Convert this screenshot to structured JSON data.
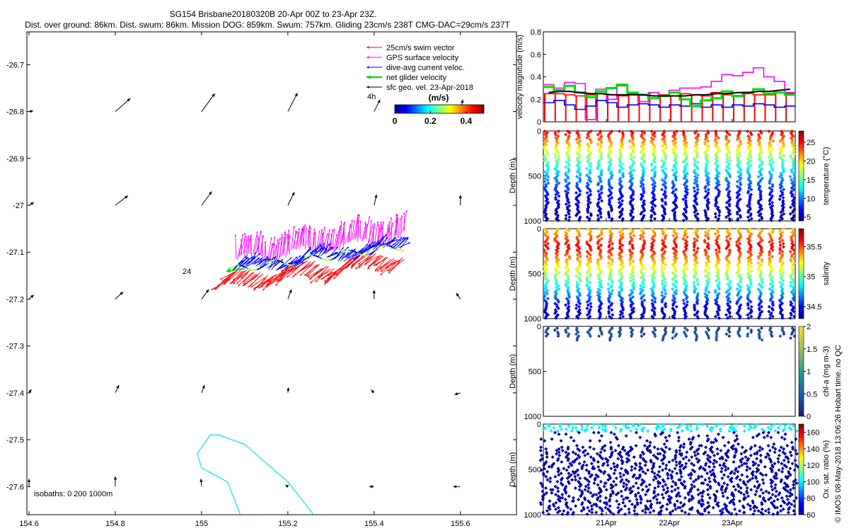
{
  "header": {
    "line1": "SG154 Brisbane20180320B 20-Apr 00Z to 23-Apr 23Z.",
    "line2": "Dist. over ground: 86km. Dist. swum: 86km. Mission DOG: 859km. Swum: 757km. Gliding 23cm/s 238T CMG-DAC=29cm/s 237T"
  },
  "chart_data": [
    {
      "type": "scatter",
      "title": "",
      "xlabel": "",
      "ylabel": "",
      "xlim": [
        154.595,
        155.73
      ],
      "ylim": [
        -27.66,
        -26.63
      ],
      "xticks": [
        "154.6",
        "154.8",
        "155",
        "155.2",
        "155.4",
        "155.6"
      ],
      "xtick_values": [
        154.6,
        154.8,
        155.0,
        155.2,
        155.4,
        155.6
      ],
      "yticks": [
        "-26.7",
        "-26.8",
        "-26.9",
        "-27",
        "-27.1",
        "-27.2",
        "-27.3",
        "-27.4",
        "-27.5",
        "-27.6"
      ],
      "ytick_values": [
        -26.7,
        -26.8,
        -26.9,
        -27.0,
        -27.1,
        -27.2,
        -27.3,
        -27.4,
        -27.5,
        -27.6
      ],
      "legend": {
        "placement": "top-right",
        "entries": [
          {
            "name": "25cm/s swim vector",
            "color": "#ff0000"
          },
          {
            "name": "GPS surface velocity",
            "color": "#ff00ff"
          },
          {
            "name": "dive-avg current veloc.",
            "color": "#0000ff"
          },
          {
            "name": "net glider velocity",
            "color": "#00dd00"
          },
          {
            "name": "sfc geo. vel. 23-Apr-2018",
            "color": "#000000"
          }
        ]
      },
      "labels": {
        "h4": "4h",
        "h24": "24",
        "isobaths": "isobaths: 0   200  1000m"
      },
      "colorbar": {
        "title": "(m/s)",
        "ticks": [
          "0",
          "0.2",
          "0.4"
        ],
        "range": [
          0,
          0.5
        ]
      },
      "geo_vectors": {
        "lons": [
          154.6,
          154.8,
          155.0,
          155.2,
          155.4,
          155.6
        ],
        "lats": [
          -26.8,
          -27.0,
          -27.2,
          -27.4,
          -27.6
        ],
        "u": [
          [
            0.07,
            0.25,
            0.22,
            0.16,
            0.1,
            0.04
          ],
          [
            0.08,
            0.21,
            0.17,
            0.11,
            0.04,
            0.0
          ],
          [
            0.08,
            0.13,
            0.12,
            0.06,
            0.0,
            -0.07
          ],
          [
            0.04,
            0.06,
            0.05,
            0.01,
            -0.05,
            -0.1
          ],
          [
            0.0,
            0.0,
            -0.01,
            -0.04,
            -0.08,
            -0.12
          ]
        ],
        "v": [
          [
            0.01,
            0.22,
            0.3,
            0.31,
            0.2,
            0.2
          ],
          [
            0.05,
            0.16,
            0.23,
            0.22,
            0.18,
            0.17
          ],
          [
            0.07,
            0.12,
            0.16,
            0.16,
            0.15,
            0.1
          ],
          [
            0.06,
            0.13,
            0.13,
            0.09,
            0.05,
            -0.03
          ],
          [
            0.13,
            0.17,
            0.13,
            0.03,
            0.0,
            0.0
          ]
        ]
      },
      "track": {
        "lon_range": [
          155.06,
          155.47
        ],
        "lat_range": [
          -27.16,
          -27.08
        ]
      },
      "isobath_contour": {
        "lon": [
          155.09,
          155.06,
          155.0,
          154.99,
          155.02,
          155.04,
          155.1,
          155.15,
          155.2,
          155.26
        ],
        "lat": [
          -27.66,
          -27.59,
          -27.56,
          -27.53,
          -27.49,
          -27.49,
          -27.51,
          -27.55,
          -27.59,
          -27.66
        ]
      }
    },
    {
      "type": "line",
      "title": "",
      "xlabel": "",
      "ylabel": "velocity magnitude (m/s)",
      "ylim": [
        0,
        0.8
      ],
      "yticks": [
        "0",
        "0.2",
        "0.4",
        "0.6",
        "0.8"
      ],
      "ytick_values": [
        0,
        0.2,
        0.4,
        0.6,
        0.8
      ],
      "series": [
        {
          "name": "",
          "color": "#ff0000",
          "values": [
            0.25,
            0.25,
            0.24,
            0.23,
            0.24,
            0.25,
            0.24,
            0.23,
            0.25,
            0.24,
            0.26,
            0.24,
            0.23,
            0.25,
            0.24,
            0.23,
            0.26,
            0.24,
            0.23,
            0.25,
            0.24,
            0.24,
            0.26,
            0.25
          ]
        },
        {
          "name": "",
          "color": "#ff00ff",
          "values": [
            0.33,
            0.3,
            0.35,
            0.34,
            0.02,
            0.29,
            0.2,
            0.32,
            0.26,
            0.18,
            0.26,
            0.23,
            0.28,
            0.3,
            0.3,
            0.31,
            0.36,
            0.42,
            0.41,
            0.44,
            0.48,
            0.4,
            0.36,
            0.26
          ]
        },
        {
          "name": "",
          "color": "#0000ff",
          "values": [
            0.17,
            0.19,
            0.15,
            0.11,
            0.14,
            0.19,
            0.17,
            0.13,
            0.15,
            0.16,
            0.15,
            0.13,
            0.15,
            0.14,
            0.16,
            0.13,
            0.15,
            0.13,
            0.15,
            0.14,
            0.16,
            0.15,
            0.13,
            0.14
          ]
        },
        {
          "name": "",
          "color": "#00dd00",
          "values": [
            0.31,
            0.28,
            0.32,
            0.26,
            0.22,
            0.27,
            0.3,
            0.33,
            0.26,
            0.24,
            0.21,
            0.23,
            0.26,
            0.2,
            0.14,
            0.19,
            0.21,
            0.27,
            0.23,
            0.26,
            0.29,
            0.25,
            0.26,
            0.24
          ]
        },
        {
          "name": "",
          "color": "#000000",
          "values": [
            0.26,
            0.27,
            0.27,
            0.26,
            0.25,
            0.25,
            0.24,
            0.24,
            0.24,
            0.24,
            0.23,
            0.23,
            0.23,
            0.23,
            0.24,
            0.24,
            0.25,
            0.25,
            0.26,
            0.26,
            0.27,
            0.27,
            0.28,
            0.29
          ]
        }
      ]
    },
    {
      "type": "scatter",
      "title": "",
      "xlabel": "",
      "ylabel": "Depth (m)",
      "colorbar_label": "temperature (°C)",
      "colorbar_ticks": [
        "5",
        "10",
        "15",
        "20",
        "25"
      ],
      "colorbar_range": [
        4,
        28
      ],
      "ylim": [
        1000,
        0
      ],
      "yticks": [
        "0",
        "500",
        "1000"
      ],
      "profiles": 24,
      "profile_max_depth": 1000,
      "surface_value": 26,
      "deep_value": 5
    },
    {
      "type": "scatter",
      "title": "",
      "xlabel": "",
      "ylabel": "Depth (m)",
      "colorbar_label": "salinity",
      "colorbar_ticks": [
        "34.5",
        "35",
        "35.5"
      ],
      "colorbar_range": [
        34.3,
        35.8
      ],
      "ylim": [
        1000,
        0
      ],
      "yticks": [
        "0",
        "500",
        "1000"
      ],
      "profiles": 24,
      "profile_max_depth": 1000,
      "surface_value": 35.3,
      "mid_value": 35.65,
      "deep_value": 34.4
    },
    {
      "type": "scatter",
      "title": "",
      "xlabel": "",
      "ylabel": "Depth (m)",
      "colorbar_label": "chl-a (mg m-3)",
      "colorbar_ticks": [
        "0",
        "0.5",
        "1",
        "1.5",
        "2"
      ],
      "colorbar_range": [
        0,
        2
      ],
      "ylim": [
        1000,
        0
      ],
      "yticks": [
        "0",
        "500",
        "1000"
      ],
      "profiles": 24,
      "profile_max_depth": 180,
      "value_range": [
        0.2,
        0.5
      ]
    },
    {
      "type": "scatter",
      "title": "",
      "xlabel": "",
      "ylabel": "Depth (m)",
      "colorbar_label": "Ox. sat. ratio (%)",
      "colorbar_ticks": [
        "60",
        "80",
        "100",
        "120",
        "140",
        "160"
      ],
      "colorbar_range": [
        60,
        170
      ],
      "ylim": [
        1000,
        0
      ],
      "yticks": [
        "0",
        "500",
        "1000"
      ],
      "xticks": [
        "21Apr",
        "22Apr",
        "23Apr"
      ],
      "profiles": 24,
      "profile_max_depth": 1000,
      "surface_value": 100,
      "deep_value": 62
    }
  ],
  "footer": {
    "credit": "© IMOS 08-May-2018 13:06:26 Hobart time. no QC"
  }
}
